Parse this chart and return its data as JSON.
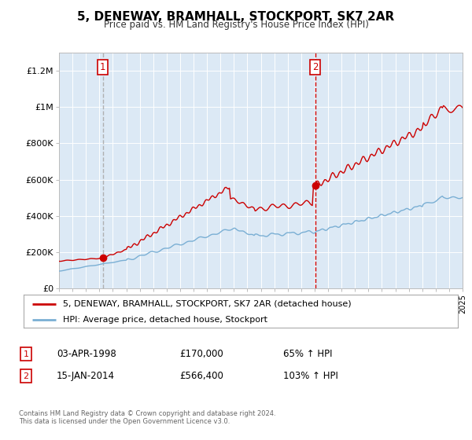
{
  "title": "5, DENEWAY, BRAMHALL, STOCKPORT, SK7 2AR",
  "subtitle": "Price paid vs. HM Land Registry's House Price Index (HPI)",
  "legend_label_red": "5, DENEWAY, BRAMHALL, STOCKPORT, SK7 2AR (detached house)",
  "legend_label_blue": "HPI: Average price, detached house, Stockport",
  "annotation1_label": "1",
  "annotation1_date": "03-APR-1998",
  "annotation1_price": "£170,000",
  "annotation1_hpi": "65% ↑ HPI",
  "annotation1_year": 1998.25,
  "annotation1_value": 170000,
  "annotation2_label": "2",
  "annotation2_date": "15-JAN-2014",
  "annotation2_price": "£566,400",
  "annotation2_hpi": "103% ↑ HPI",
  "annotation2_year": 2014.04,
  "annotation2_value": 566400,
  "xlim": [
    1995,
    2025
  ],
  "ylim": [
    0,
    1300000
  ],
  "yticks": [
    0,
    200000,
    400000,
    600000,
    800000,
    1000000,
    1200000
  ],
  "ytick_labels": [
    "£0",
    "£200K",
    "£400K",
    "£600K",
    "£800K",
    "£1M",
    "£1.2M"
  ],
  "plot_bg_color": "#dce9f5",
  "red_color": "#cc0000",
  "blue_color": "#7aafd4",
  "vline1_color": "#aaaaaa",
  "vline2_color": "#cc0000",
  "copyright_text": "Contains HM Land Registry data © Crown copyright and database right 2024.\nThis data is licensed under the Open Government Licence v3.0."
}
